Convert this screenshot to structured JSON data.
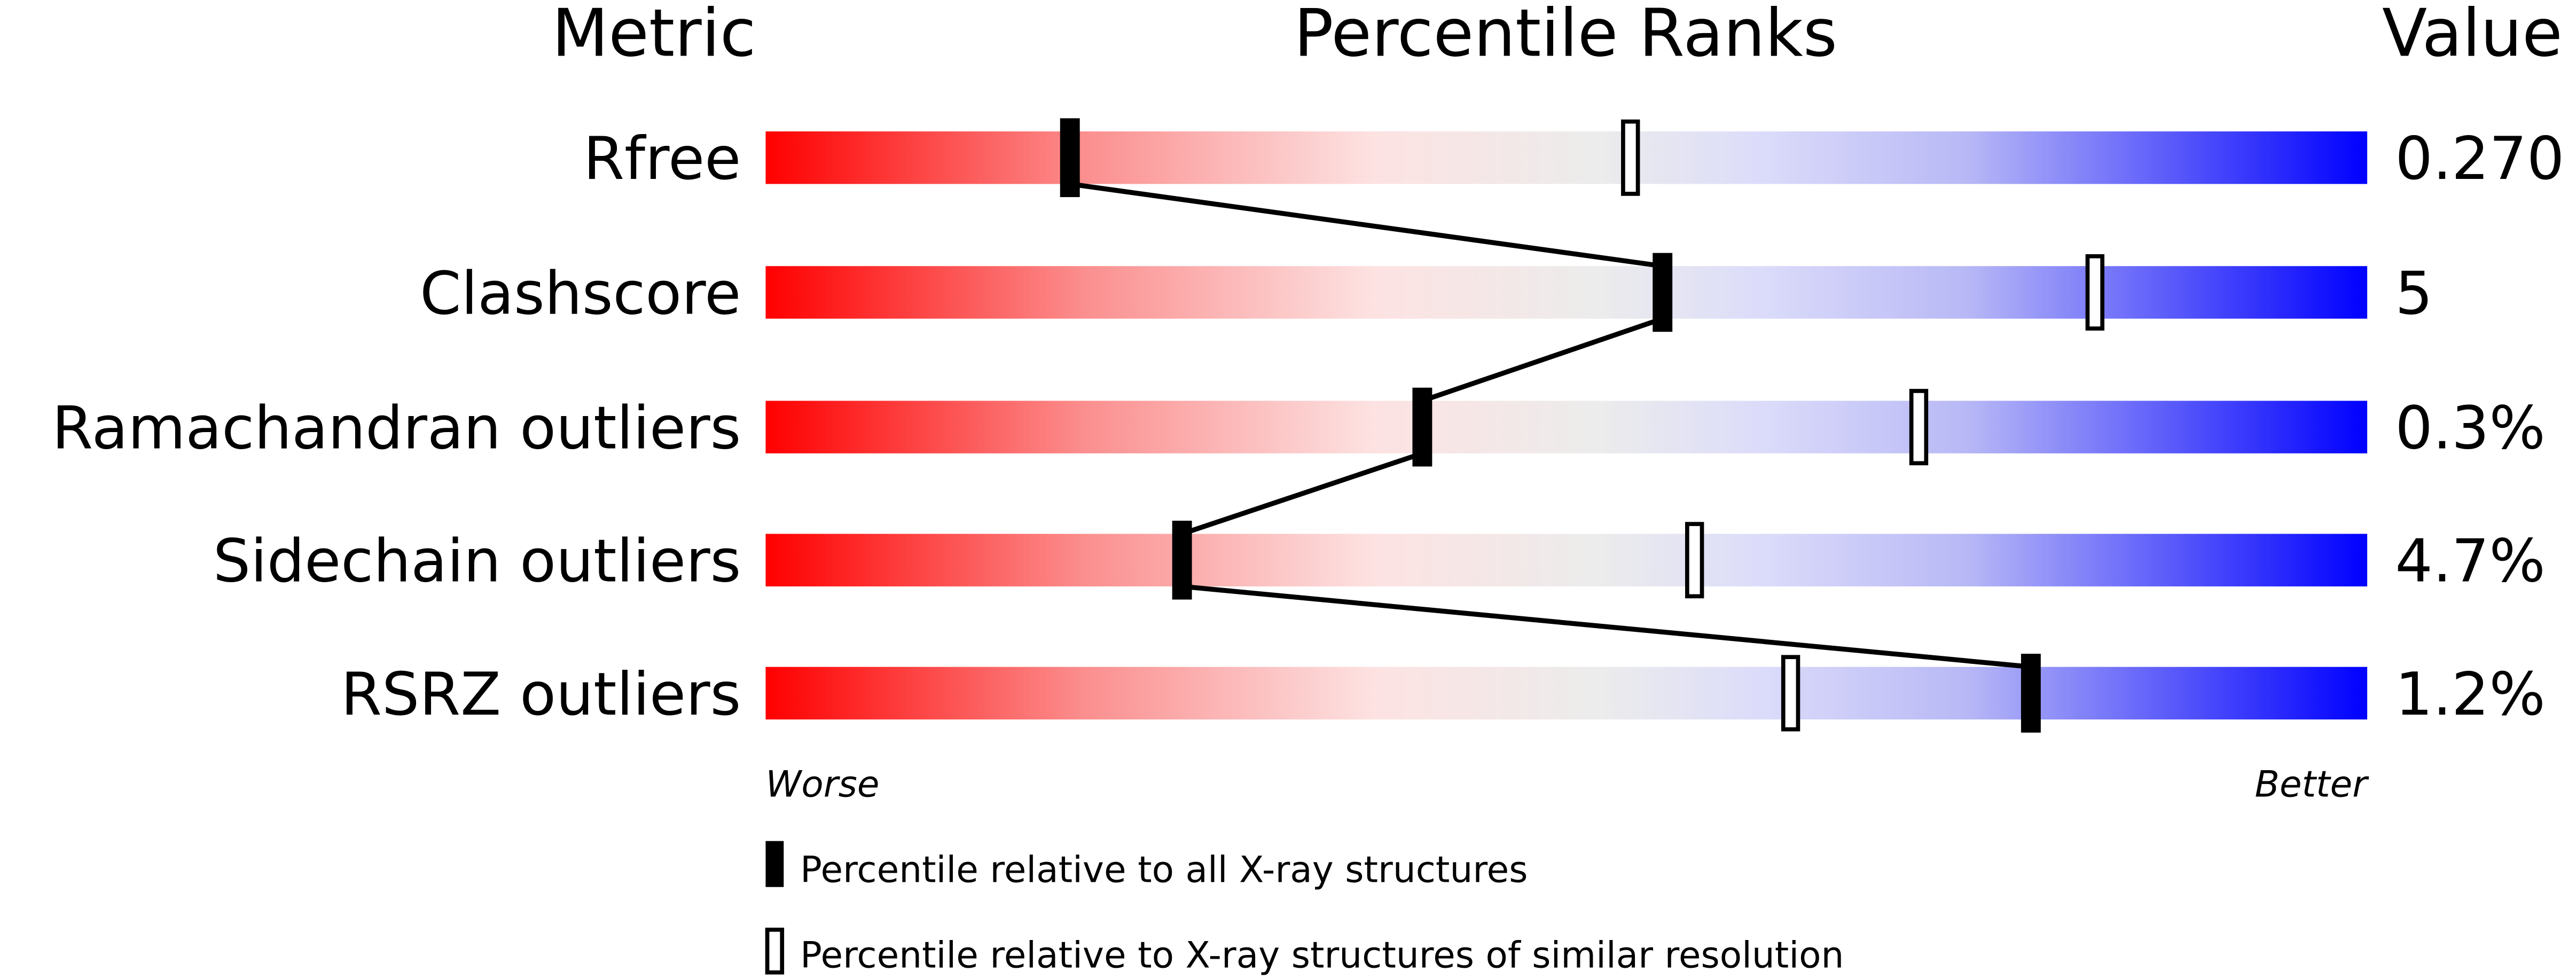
{
  "chart_data": {
    "type": "percentile-slider",
    "headers": {
      "metric": "Metric",
      "ranks": "Percentile Ranks",
      "value": "Value"
    },
    "xlim": [
      0,
      100
    ],
    "axis_labels": {
      "left": "Worse",
      "right": "Better"
    },
    "gradient_colors": {
      "worse": "#ff0000",
      "middle": "#eeeeee",
      "better": "#0000ff"
    },
    "rows": [
      {
        "metric": "Rfree",
        "value": "0.270",
        "percentile_all": 19,
        "percentile_similar": 54
      },
      {
        "metric": "Clashscore",
        "value": "5",
        "percentile_all": 56,
        "percentile_similar": 83
      },
      {
        "metric": "Ramachandran outliers",
        "value": "0.3%",
        "percentile_all": 41,
        "percentile_similar": 72
      },
      {
        "metric": "Sidechain outliers",
        "value": "4.7%",
        "percentile_all": 26,
        "percentile_similar": 58
      },
      {
        "metric": "RSRZ outliers",
        "value": "1.2%",
        "percentile_all": 79,
        "percentile_similar": 64
      }
    ],
    "legend": [
      {
        "marker": "filled",
        "label": "Percentile relative to all X-ray structures"
      },
      {
        "marker": "open",
        "label": "Percentile relative to X-ray structures of similar resolution"
      }
    ]
  }
}
